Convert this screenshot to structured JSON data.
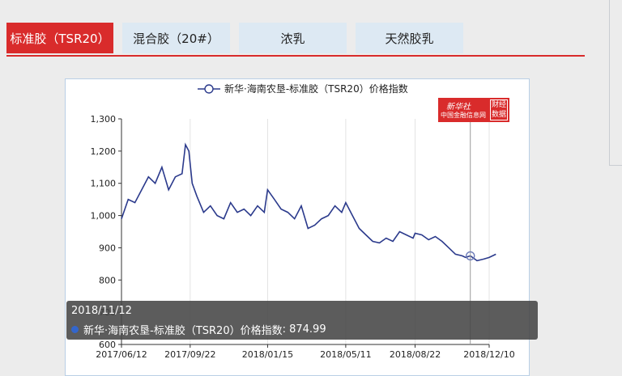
{
  "tabs": [
    {
      "label": "标准胶（TSR20）",
      "active": true
    },
    {
      "label": "混合胶（20#）",
      "active": false
    },
    {
      "label": "浓乳",
      "active": false
    },
    {
      "label": "天然胶乳",
      "active": false
    }
  ],
  "logo": {
    "line1": "新华社",
    "line2": "中国金融信息网",
    "badge_top": "财经",
    "badge_bottom": "数据"
  },
  "tooltip": {
    "date": "2018/11/12",
    "series": "新华·海南农垦-标准胶（TSR20）价格指数",
    "value": "874.99"
  },
  "colors": {
    "accent": "#d92b2b",
    "line": "#2b3a8c",
    "tab_inactive": "#dde9f3"
  },
  "chart_data": {
    "type": "line",
    "series": [
      {
        "name": "新华·海南农垦-标准胶（TSR20）价格指数",
        "x": [
          "2017/06/12",
          "2017/06/22",
          "2017/07/02",
          "2017/07/12",
          "2017/07/22",
          "2017/08/01",
          "2017/08/11",
          "2017/08/21",
          "2017/08/31",
          "2017/09/10",
          "2017/09/15",
          "2017/09/20",
          "2017/09/25",
          "2017/10/02",
          "2017/10/12",
          "2017/10/22",
          "2017/11/01",
          "2017/11/11",
          "2017/11/21",
          "2017/12/01",
          "2017/12/11",
          "2017/12/21",
          "2017/12/31",
          "2018/01/10",
          "2018/01/15",
          "2018/01/25",
          "2018/02/04",
          "2018/02/14",
          "2018/02/24",
          "2018/03/06",
          "2018/03/16",
          "2018/03/26",
          "2018/04/05",
          "2018/04/15",
          "2018/04/25",
          "2018/05/05",
          "2018/05/11",
          "2018/05/21",
          "2018/05/31",
          "2018/06/10",
          "2018/06/20",
          "2018/06/30",
          "2018/07/10",
          "2018/07/20",
          "2018/07/30",
          "2018/08/09",
          "2018/08/19",
          "2018/08/22",
          "2018/09/01",
          "2018/09/11",
          "2018/09/21",
          "2018/10/01",
          "2018/10/11",
          "2018/10/21",
          "2018/10/31",
          "2018/11/05",
          "2018/11/12",
          "2018/11/22",
          "2018/12/02",
          "2018/12/10",
          "2018/12/20"
        ],
        "values": [
          990,
          1050,
          1040,
          1080,
          1120,
          1100,
          1150,
          1080,
          1120,
          1130,
          1220,
          1200,
          1100,
          1060,
          1010,
          1030,
          1000,
          990,
          1040,
          1010,
          1020,
          1000,
          1030,
          1010,
          1080,
          1050,
          1020,
          1010,
          990,
          1030,
          960,
          970,
          990,
          1000,
          1030,
          1010,
          1040,
          1000,
          960,
          940,
          920,
          915,
          930,
          920,
          950,
          940,
          930,
          945,
          940,
          925,
          935,
          920,
          900,
          880,
          875,
          870,
          875,
          860,
          865,
          870,
          880
        ]
      }
    ],
    "x_ticks": [
      "2017/06/12",
      "2017/09/22",
      "2018/01/15",
      "2018/05/11",
      "2018/08/22",
      "2018/12/10"
    ],
    "y_ticks": [
      600,
      700,
      800,
      900,
      1000,
      1100,
      1200,
      1300
    ],
    "ylim": [
      600,
      1300
    ],
    "grid": "vertical",
    "legend_position": "top"
  }
}
